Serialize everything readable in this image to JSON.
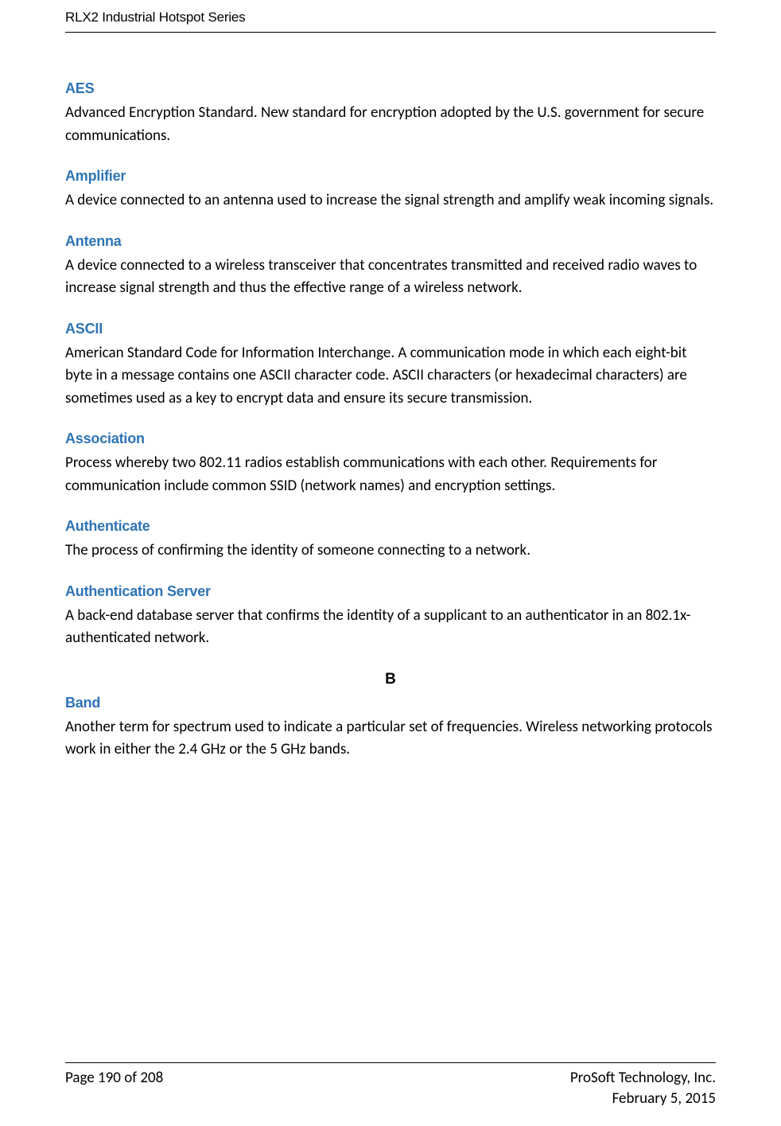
{
  "header": {
    "doc_title": "RLX2 Industrial Hotspot Series"
  },
  "colors": {
    "term_color": "#2e74b5",
    "text_color": "#000000",
    "rule_color": "#000000",
    "background": "#ffffff"
  },
  "typography": {
    "term_fontsize": 18,
    "body_fontsize": 19,
    "header_fontsize": 17,
    "term_font": "Arial",
    "body_font": "Calibri"
  },
  "entries": [
    {
      "term": "AES",
      "definition": "Advanced Encryption Standard. New standard for encryption adopted by the U.S. government for secure communications."
    },
    {
      "term": "Amplifier",
      "definition": "A device connected to an antenna used to increase the signal strength and amplify weak incoming signals."
    },
    {
      "term": "Antenna",
      "definition": "A device connected to a wireless transceiver that concentrates transmitted and received radio waves to increase signal strength and thus the effective range of a wireless network."
    },
    {
      "term": "ASCII",
      "definition": "American Standard Code for Information Interchange. A communication mode in which each eight-bit byte in a message contains one ASCII character code. ASCII characters (or hexadecimal characters) are sometimes used as a key to encrypt data and ensure its secure transmission."
    },
    {
      "term": "Association",
      "definition": "Process whereby two 802.11 radios establish communications with each other. Requirements for communication include common SSID (network names) and encryption settings."
    },
    {
      "term": "Authenticate",
      "definition": "The process of confirming the identity of someone connecting to a network."
    },
    {
      "term": "Authentication Server",
      "definition": "A back-end database server that confirms the identity of a supplicant to an authenticator in an 802.1x-authenticated network."
    }
  ],
  "section_letter": "B",
  "entries_b": [
    {
      "term": "Band",
      "definition": "Another term for spectrum used to indicate a particular set of frequencies. Wireless networking protocols work in either the 2.4 GHz or the 5 GHz bands."
    }
  ],
  "footer": {
    "page_info": "Page 190 of 208",
    "company": "ProSoft Technology, Inc.",
    "date": "February 5, 2015"
  }
}
